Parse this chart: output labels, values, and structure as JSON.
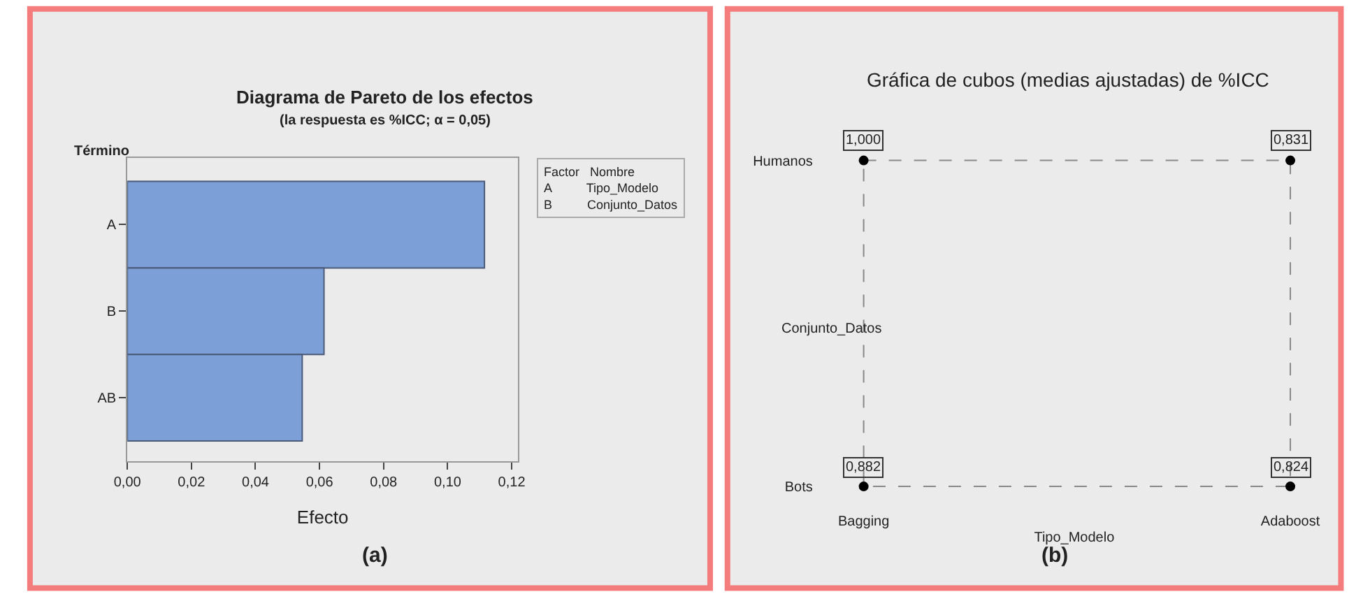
{
  "chart_data": [
    {
      "type": "bar",
      "orientation": "horizontal",
      "title": "Diagrama de Pareto de los efectos",
      "subtitle": "(la respuesta es %ICC; α = 0,05)",
      "xlabel": "Efecto",
      "ylabel": "Término",
      "categories": [
        "A",
        "B",
        "AB"
      ],
      "values": [
        0.1115,
        0.0614,
        0.0546
      ],
      "color": "#7b9fd6",
      "xlim": [
        0,
        0.122
      ],
      "xticks": [
        {
          "value": 0,
          "label": "0,00"
        },
        {
          "value": 0.02,
          "label": "0,02"
        },
        {
          "value": 0.04,
          "label": "0,04"
        },
        {
          "value": 0.06,
          "label": "0,06"
        },
        {
          "value": 0.08,
          "label": "0,08"
        },
        {
          "value": 0.1,
          "label": "0,10"
        },
        {
          "value": 0.12,
          "label": "0,12"
        }
      ],
      "grid": false,
      "annotations": [
        "Factor   Nombre",
        "A          Tipo_Modelo",
        "B          Conjunto_Datos",
        "(a)"
      ]
    },
    {
      "type": "other",
      "title": "Gráfica de cubos (medias ajustadas) de %ICC",
      "xlabel": "Tipo_Modelo",
      "ylabel": "Conjunto_Datos",
      "categories": [
        "Bagging",
        "Adaboost"
      ],
      "y_categories": [
        "Humanos",
        "Bots"
      ],
      "annotations": [
        {
          "text": "1,000",
          "x": "Bagging",
          "y": "Humanos"
        },
        {
          "text": "0,831",
          "x": "Adaboost",
          "y": "Humanos"
        },
        {
          "text": "0,882",
          "x": "Bagging",
          "y": "Bots"
        },
        {
          "text": "0,824",
          "x": "Adaboost",
          "y": "Bots"
        },
        "(b)"
      ]
    }
  ]
}
